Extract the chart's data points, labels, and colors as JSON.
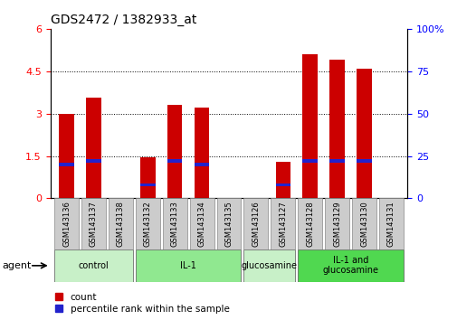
{
  "title": "GDS2472 / 1382933_at",
  "samples": [
    "GSM143136",
    "GSM143137",
    "GSM143138",
    "GSM143132",
    "GSM143133",
    "GSM143134",
    "GSM143135",
    "GSM143126",
    "GSM143127",
    "GSM143128",
    "GSM143129",
    "GSM143130",
    "GSM143131"
  ],
  "count_values": [
    3.0,
    3.55,
    0.0,
    1.45,
    3.3,
    3.2,
    0.0,
    0.0,
    1.3,
    5.1,
    4.9,
    4.6,
    0.0
  ],
  "percentile_values_pct": [
    20,
    22,
    0,
    8,
    22,
    20,
    0,
    0,
    8,
    22,
    22,
    22,
    0
  ],
  "groups": [
    {
      "label": "control",
      "start": 0,
      "end": 2,
      "color": "#c8f0c8"
    },
    {
      "label": "IL-1",
      "start": 3,
      "end": 6,
      "color": "#90e890"
    },
    {
      "label": "glucosamine",
      "start": 7,
      "end": 8,
      "color": "#c8f0c8"
    },
    {
      "label": "IL-1 and\nglucosamine",
      "start": 9,
      "end": 12,
      "color": "#50d850"
    }
  ],
  "ylim_left": [
    0,
    6
  ],
  "ylim_right": [
    0,
    100
  ],
  "yticks_left": [
    0,
    1.5,
    3.0,
    4.5,
    6.0
  ],
  "yticks_labels_left": [
    "0",
    "1.5",
    "3",
    "4.5",
    "6"
  ],
  "yticks_right": [
    0,
    25,
    50,
    75,
    100
  ],
  "yticks_labels_right": [
    "0",
    "25",
    "50",
    "75",
    "100%"
  ],
  "bar_color_red": "#cc0000",
  "bar_color_blue": "#2222cc",
  "bar_width": 0.55,
  "legend_count": "count",
  "legend_percentile": "percentile rank within the sample",
  "agent_label": "agent"
}
